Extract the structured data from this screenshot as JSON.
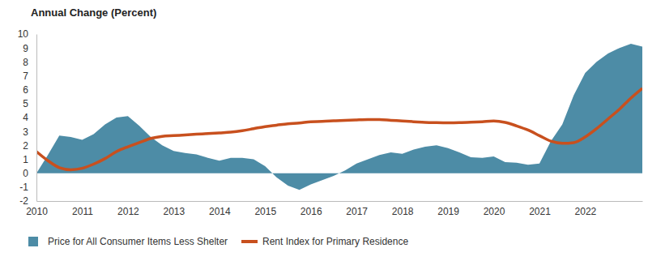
{
  "chart_data": {
    "type": "line",
    "title": "Annual Change (Percent)",
    "x": [
      2010,
      2010.25,
      2010.5,
      2010.75,
      2011,
      2011.25,
      2011.5,
      2011.75,
      2012,
      2012.25,
      2012.5,
      2012.75,
      2013,
      2013.25,
      2013.5,
      2013.75,
      2014,
      2014.25,
      2014.5,
      2014.75,
      2015,
      2015.25,
      2015.5,
      2015.75,
      2016,
      2016.25,
      2016.5,
      2016.75,
      2017,
      2017.25,
      2017.5,
      2017.75,
      2018,
      2018.25,
      2018.5,
      2018.75,
      2019,
      2019.25,
      2019.5,
      2019.75,
      2020,
      2020.25,
      2020.5,
      2020.75,
      2021,
      2021.25,
      2021.5,
      2021.75,
      2022,
      2022.25,
      2022.5,
      2022.75,
      2023,
      2023.25
    ],
    "series": [
      {
        "name": "Price for All Consumer Items Less Shelter",
        "type": "area",
        "color": "#4d8ca6",
        "values": [
          0,
          1.3,
          2.7,
          2.6,
          2.4,
          2.8,
          3.5,
          4.0,
          4.1,
          3.4,
          2.6,
          2.0,
          1.6,
          1.45,
          1.35,
          1.1,
          0.9,
          1.1,
          1.1,
          1.0,
          0.5,
          -0.3,
          -0.9,
          -1.2,
          -0.8,
          -0.5,
          -0.2,
          0.2,
          0.7,
          1.0,
          1.3,
          1.5,
          1.4,
          1.7,
          1.9,
          2.0,
          1.8,
          1.5,
          1.15,
          1.1,
          1.2,
          0.8,
          0.75,
          0.6,
          0.7,
          2.3,
          3.5,
          5.6,
          7.2,
          8.0,
          8.6,
          9.0,
          9.3,
          9.1
        ]
      },
      {
        "name": "Rent Index for Primary Residence",
        "type": "line",
        "color": "#c8501e",
        "values": [
          1.55,
          0.9,
          0.4,
          0.25,
          0.35,
          0.65,
          1.05,
          1.55,
          1.9,
          2.2,
          2.5,
          2.65,
          2.7,
          2.75,
          2.8,
          2.85,
          2.9,
          2.95,
          3.05,
          3.2,
          3.35,
          3.45,
          3.55,
          3.6,
          3.7,
          3.72,
          3.76,
          3.8,
          3.83,
          3.85,
          3.85,
          3.8,
          3.75,
          3.7,
          3.65,
          3.63,
          3.62,
          3.63,
          3.66,
          3.7,
          3.75,
          3.65,
          3.4,
          3.1,
          2.7,
          2.3,
          2.15,
          2.2,
          2.6,
          3.2,
          3.9,
          4.6,
          5.4,
          6.1
        ]
      }
    ],
    "xlim": [
      2010,
      2023.25
    ],
    "xticks": [
      2010,
      2011,
      2012,
      2013,
      2014,
      2015,
      2016,
      2017,
      2018,
      2019,
      2020,
      2021,
      2022
    ],
    "ylim": [
      -2,
      10
    ],
    "yticks": [
      -2,
      -1,
      0,
      1,
      2,
      3,
      4,
      5,
      6,
      7,
      8,
      9,
      10
    ],
    "grid": false,
    "legend": "bottom"
  }
}
